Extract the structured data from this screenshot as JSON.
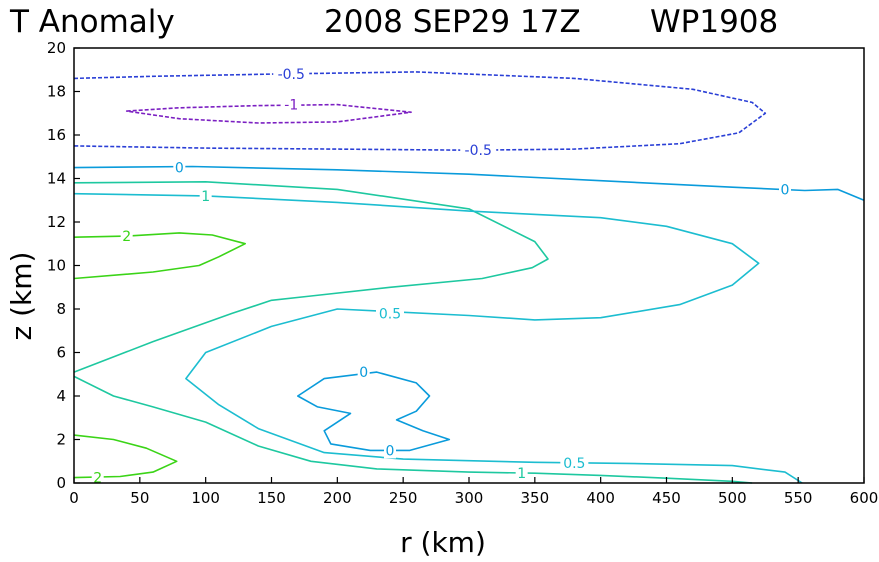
{
  "chart_data": {
    "type": "contour",
    "title": "T Anomaly",
    "date": "2008 SEP29 17Z",
    "storm_id": "WP1908",
    "xlabel": "r (km)",
    "ylabel": "z (km)",
    "xlim": [
      0,
      600
    ],
    "ylim": [
      0,
      20
    ],
    "xticks": [
      0,
      50,
      100,
      150,
      200,
      250,
      300,
      350,
      400,
      450,
      500,
      550,
      600
    ],
    "yticks": [
      0,
      2,
      4,
      6,
      8,
      10,
      12,
      14,
      16,
      18,
      20
    ],
    "contours": [
      {
        "level": "-0.5",
        "color": "#2a3fd6",
        "dashed": true,
        "points": [
          [
            0,
            18.6
          ],
          [
            60,
            18.7
          ],
          [
            150,
            18.8
          ],
          [
            260,
            18.9
          ],
          [
            380,
            18.6
          ],
          [
            470,
            18.1
          ],
          [
            515,
            17.5
          ],
          [
            525,
            17.0
          ],
          [
            505,
            16.1
          ],
          [
            460,
            15.6
          ],
          [
            380,
            15.35
          ],
          [
            300,
            15.3
          ],
          [
            200,
            15.35
          ],
          [
            100,
            15.4
          ],
          [
            0,
            15.5
          ]
        ]
      },
      {
        "level": "-1",
        "color": "#7b1fc2",
        "dashed": true,
        "closed": true,
        "points": [
          [
            40,
            17.1
          ],
          [
            80,
            17.25
          ],
          [
            140,
            17.35
          ],
          [
            200,
            17.4
          ],
          [
            256,
            17.05
          ],
          [
            200,
            16.6
          ],
          [
            140,
            16.55
          ],
          [
            80,
            16.75
          ]
        ]
      },
      {
        "level": "0",
        "color": "#0a9bdb",
        "dashed": false,
        "points": [
          [
            0,
            14.5
          ],
          [
            90,
            14.55
          ],
          [
            200,
            14.4
          ],
          [
            300,
            14.2
          ],
          [
            400,
            13.9
          ],
          [
            500,
            13.6
          ],
          [
            555,
            13.45
          ],
          [
            580,
            13.5
          ],
          [
            600,
            13.0
          ]
        ]
      },
      {
        "level": "1",
        "color": "#1ec8a0",
        "dashed": false,
        "points": [
          [
            0,
            13.8
          ],
          [
            100,
            13.85
          ],
          [
            200,
            13.5
          ],
          [
            300,
            12.6
          ],
          [
            350,
            11.1
          ],
          [
            360,
            10.3
          ],
          [
            348,
            9.9
          ],
          [
            310,
            9.4
          ],
          [
            240,
            9.0
          ],
          [
            180,
            8.6
          ],
          [
            150,
            8.4
          ],
          [
            120,
            7.8
          ],
          [
            60,
            6.5
          ],
          [
            30,
            5.8
          ],
          [
            0,
            5.1
          ]
        ]
      },
      {
        "level": "0.5",
        "color": "#1cbdd0",
        "dashed": false,
        "points": [
          [
            0,
            13.3
          ],
          [
            100,
            13.2
          ],
          [
            200,
            12.9
          ],
          [
            300,
            12.5
          ],
          [
            400,
            12.2
          ],
          [
            450,
            11.8
          ],
          [
            500,
            11.0
          ],
          [
            520,
            10.1
          ],
          [
            500,
            9.1
          ],
          [
            460,
            8.2
          ],
          [
            400,
            7.6
          ],
          [
            350,
            7.5
          ],
          [
            300,
            7.7
          ],
          [
            200,
            8.0
          ],
          [
            150,
            7.2
          ],
          [
            100,
            6.0
          ],
          [
            85,
            4.8
          ],
          [
            110,
            3.6
          ],
          [
            140,
            2.5
          ],
          [
            190,
            1.4
          ],
          [
            250,
            1.1
          ],
          [
            350,
            0.95
          ],
          [
            420,
            0.9
          ],
          [
            500,
            0.8
          ],
          [
            540,
            0.5
          ],
          [
            553,
            0.0
          ]
        ]
      },
      {
        "level": "1",
        "color": "#1ec8a0",
        "dashed": false,
        "points": [
          [
            0,
            4.9
          ],
          [
            30,
            4.0
          ],
          [
            60,
            3.5
          ],
          [
            100,
            2.8
          ],
          [
            140,
            1.7
          ],
          [
            180,
            1.0
          ],
          [
            230,
            0.65
          ],
          [
            300,
            0.5
          ],
          [
            350,
            0.45
          ],
          [
            400,
            0.35
          ],
          [
            450,
            0.22
          ],
          [
            500,
            0.08
          ],
          [
            515,
            0.0
          ]
        ]
      },
      {
        "level": "0",
        "color": "#0a9bdb",
        "dashed": false,
        "closed": true,
        "points": [
          [
            230,
            5.1
          ],
          [
            190,
            4.8
          ],
          [
            170,
            4.0
          ],
          [
            185,
            3.5
          ],
          [
            210,
            3.2
          ],
          [
            190,
            2.4
          ],
          [
            195,
            1.8
          ],
          [
            225,
            1.5
          ],
          [
            255,
            1.5
          ],
          [
            285,
            2.0
          ],
          [
            265,
            2.4
          ],
          [
            245,
            2.9
          ],
          [
            260,
            3.3
          ],
          [
            270,
            4.0
          ],
          [
            260,
            4.6
          ]
        ]
      },
      {
        "level": "2",
        "color": "#3bd417",
        "dashed": false,
        "points": [
          [
            0,
            11.3
          ],
          [
            40,
            11.35
          ],
          [
            80,
            11.5
          ],
          [
            105,
            11.4
          ],
          [
            130,
            11.0
          ],
          [
            110,
            10.4
          ],
          [
            95,
            10.0
          ],
          [
            60,
            9.7
          ],
          [
            0,
            9.4
          ]
        ]
      },
      {
        "level": "2",
        "color": "#3bd417",
        "dashed": false,
        "points": [
          [
            0,
            2.2
          ],
          [
            30,
            2.0
          ],
          [
            55,
            1.6
          ],
          [
            78,
            1.0
          ],
          [
            60,
            0.5
          ],
          [
            35,
            0.3
          ],
          [
            0,
            0.25
          ]
        ]
      }
    ],
    "contour_labels": [
      {
        "text": "-0.5",
        "x": 165,
        "y": 18.8,
        "color": "#2a3fd6"
      },
      {
        "text": "-1",
        "x": 165,
        "y": 17.4,
        "color": "#7b1fc2"
      },
      {
        "text": "-0.5",
        "x": 307,
        "y": 15.3,
        "color": "#2a3fd6"
      },
      {
        "text": "0",
        "x": 80,
        "y": 14.5,
        "color": "#0a9bdb"
      },
      {
        "text": "0",
        "x": 540,
        "y": 13.5,
        "color": "#0a9bdb"
      },
      {
        "text": "1",
        "x": 100,
        "y": 13.2,
        "color": "#1ec8a0"
      },
      {
        "text": "2",
        "x": 40,
        "y": 11.35,
        "color": "#3bd417"
      },
      {
        "text": "0.5",
        "x": 240,
        "y": 7.8,
        "color": "#1cbdd0"
      },
      {
        "text": "0",
        "x": 220,
        "y": 5.1,
        "color": "#0a9bdb"
      },
      {
        "text": "0",
        "x": 240,
        "y": 1.5,
        "color": "#0a9bdb"
      },
      {
        "text": "0.5",
        "x": 380,
        "y": 0.92,
        "color": "#1cbdd0"
      },
      {
        "text": "1",
        "x": 340,
        "y": 0.45,
        "color": "#1ec8a0"
      },
      {
        "text": "2",
        "x": 18,
        "y": 0.25,
        "color": "#3bd417"
      }
    ]
  }
}
